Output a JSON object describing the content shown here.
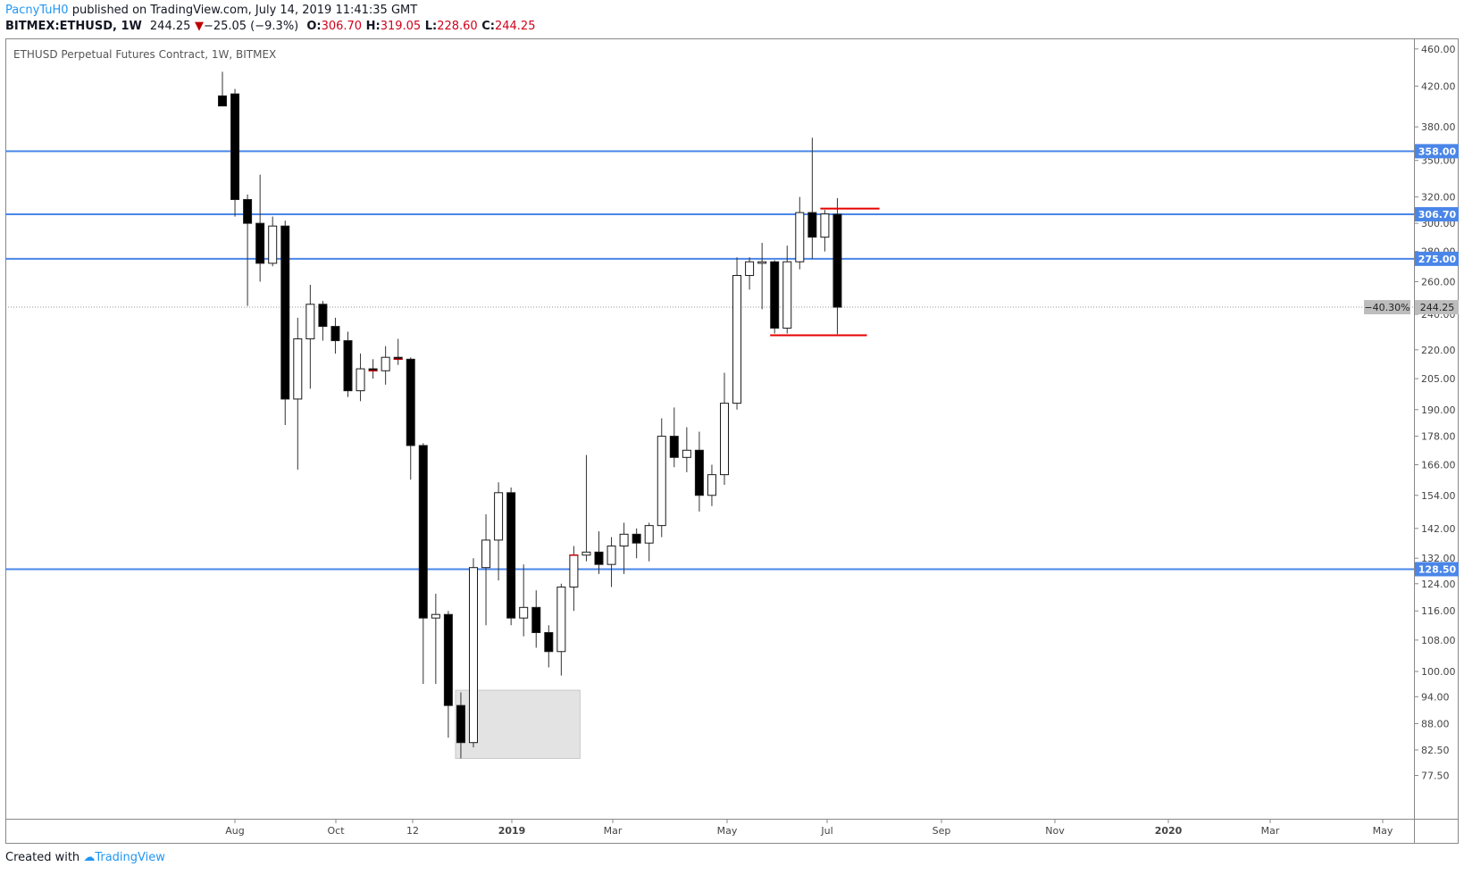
{
  "header": {
    "author": "PacnyTuH0",
    "published_text": "published on TradingView.com, July 14, 2019 11:41:35 GMT",
    "symbol": "BITMEX:ETHUSD, 1W",
    "last": "244.25",
    "change_arrow": "▼",
    "change": "−25.05 (−9.3%)",
    "o_label": "O:",
    "o": "306.70",
    "h_label": "H:",
    "h": "319.05",
    "l_label": "L:",
    "l": "228.60",
    "c_label": "C:",
    "c": "244.25"
  },
  "footer": {
    "created_with": "Created with",
    "brand": "TradingView"
  },
  "colors": {
    "blue_line": "#4a86e8",
    "red_line": "#e60000",
    "box": "#e3e3e3",
    "candle_up": "#ffffff",
    "candle_down": "#000000"
  },
  "chart_data": {
    "type": "candlestick",
    "title": "ETHUSD Perpetual Futures Contract, 1W, BITMEX",
    "ylim": [
      70,
      470
    ],
    "y_scale": "log",
    "y_ticks": [
      "460.00",
      "420.00",
      "380.00",
      "350.00",
      "320.00",
      "300.00",
      "280.00",
      "260.00",
      "240.00",
      "220.00",
      "205.00",
      "190.00",
      "178.00",
      "166.00",
      "154.00",
      "142.00",
      "132.00",
      "124.00",
      "116.00",
      "108.00",
      "100.00",
      "94.00",
      "88.00",
      "82.50",
      "77.50"
    ],
    "x_labels": [
      "Aug",
      "Oct",
      "12",
      "2019",
      "Mar",
      "May",
      "Jul",
      "Sep",
      "Nov",
      "2020",
      "Mar",
      "May"
    ],
    "horizontal_lines": [
      {
        "value": 358.0,
        "label": "358.00"
      },
      {
        "value": 306.7,
        "label": "306.70"
      },
      {
        "value": 275.0,
        "label": "275.00"
      },
      {
        "value": 128.5,
        "label": "128.50"
      }
    ],
    "last_price": {
      "value": 244.25,
      "label": "244.25",
      "change_label": "−40.30%"
    },
    "red_levels": [
      {
        "value": 311.0,
        "from_week": 48,
        "to_week": 52
      },
      {
        "value": 228.0,
        "from_week": 44,
        "to_week": 51
      }
    ],
    "highlight_box": {
      "from_week": 19,
      "to_week": 28,
      "low": 80.8,
      "high": 95.5
    },
    "candles": [
      {
        "o": 410,
        "h": 435,
        "l": 400,
        "c": 400
      },
      {
        "o": 412,
        "h": 417,
        "l": 305,
        "c": 318
      },
      {
        "o": 318,
        "h": 322,
        "l": 245,
        "c": 300
      },
      {
        "o": 300,
        "h": 338,
        "l": 260,
        "c": 272
      },
      {
        "o": 272,
        "h": 305,
        "l": 270,
        "c": 298
      },
      {
        "o": 298,
        "h": 302,
        "l": 183,
        "c": 195
      },
      {
        "o": 195,
        "h": 238,
        "l": 164,
        "c": 226
      },
      {
        "o": 226,
        "h": 258,
        "l": 200,
        "c": 246
      },
      {
        "o": 246,
        "h": 248,
        "l": 225,
        "c": 233
      },
      {
        "o": 233,
        "h": 238,
        "l": 218,
        "c": 225
      },
      {
        "o": 225,
        "h": 230,
        "l": 196,
        "c": 199
      },
      {
        "o": 199,
        "h": 218,
        "l": 194,
        "c": 210
      },
      {
        "o": 210,
        "h": 215,
        "l": 205,
        "c": 209
      },
      {
        "o": 209,
        "h": 222,
        "l": 202,
        "c": 216
      },
      {
        "o": 216,
        "h": 226,
        "l": 212,
        "c": 215
      },
      {
        "o": 215,
        "h": 216,
        "l": 160,
        "c": 174
      },
      {
        "o": 174,
        "h": 175,
        "l": 97,
        "c": 114
      },
      {
        "o": 114,
        "h": 121,
        "l": 97,
        "c": 115
      },
      {
        "o": 115,
        "h": 116,
        "l": 85,
        "c": 92
      },
      {
        "o": 92,
        "h": 95,
        "l": 80.8,
        "c": 84
      },
      {
        "o": 84,
        "h": 132,
        "l": 83,
        "c": 129
      },
      {
        "o": 129,
        "h": 147,
        "l": 112,
        "c": 138
      },
      {
        "o": 138,
        "h": 159,
        "l": 125,
        "c": 155
      },
      {
        "o": 155,
        "h": 157,
        "l": 112,
        "c": 114
      },
      {
        "o": 114,
        "h": 130,
        "l": 109,
        "c": 117
      },
      {
        "o": 117,
        "h": 122,
        "l": 106,
        "c": 110
      },
      {
        "o": 110,
        "h": 112,
        "l": 101,
        "c": 105
      },
      {
        "o": 105,
        "h": 124,
        "l": 99,
        "c": 123
      },
      {
        "o": 123,
        "h": 136,
        "l": 116,
        "c": 133
      },
      {
        "o": 133,
        "h": 170,
        "l": 131,
        "c": 134
      },
      {
        "o": 134,
        "h": 141,
        "l": 127,
        "c": 130
      },
      {
        "o": 130,
        "h": 139,
        "l": 123,
        "c": 136
      },
      {
        "o": 136,
        "h": 144,
        "l": 127,
        "c": 140
      },
      {
        "o": 140,
        "h": 142,
        "l": 132,
        "c": 137
      },
      {
        "o": 137,
        "h": 144,
        "l": 131,
        "c": 143
      },
      {
        "o": 143,
        "h": 186,
        "l": 139,
        "c": 178
      },
      {
        "o": 178,
        "h": 191,
        "l": 165,
        "c": 169
      },
      {
        "o": 169,
        "h": 182,
        "l": 163,
        "c": 172
      },
      {
        "o": 172,
        "h": 180,
        "l": 148,
        "c": 154
      },
      {
        "o": 154,
        "h": 166,
        "l": 150,
        "c": 162
      },
      {
        "o": 162,
        "h": 208,
        "l": 158,
        "c": 193
      },
      {
        "o": 193,
        "h": 276,
        "l": 190,
        "c": 264
      },
      {
        "o": 264,
        "h": 276,
        "l": 255,
        "c": 273
      },
      {
        "o": 272,
        "h": 286,
        "l": 243,
        "c": 273
      },
      {
        "o": 273,
        "h": 274,
        "l": 229,
        "c": 232
      },
      {
        "o": 232,
        "h": 284,
        "l": 229,
        "c": 273
      },
      {
        "o": 273,
        "h": 320,
        "l": 268,
        "c": 308
      },
      {
        "o": 308,
        "h": 370,
        "l": 275,
        "c": 290
      },
      {
        "o": 290,
        "h": 310,
        "l": 280,
        "c": 307
      },
      {
        "o": 306.7,
        "h": 319.05,
        "l": 228.6,
        "c": 244.25
      }
    ]
  }
}
